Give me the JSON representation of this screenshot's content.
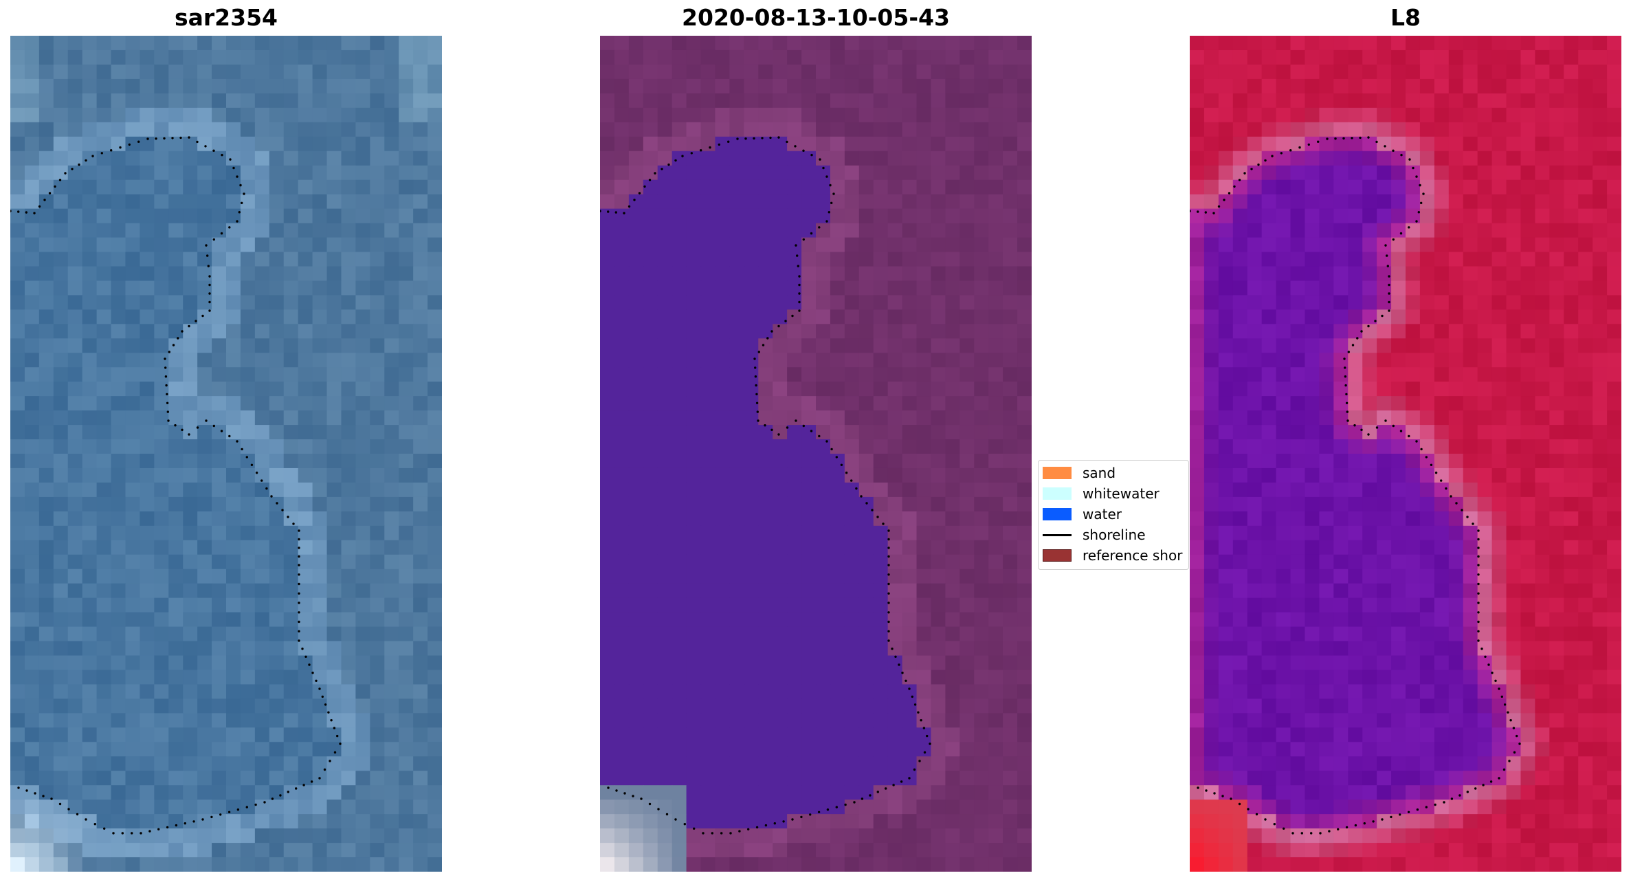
{
  "panels": [
    {
      "id": "rgb",
      "title": "sar2354"
    },
    {
      "id": "classified",
      "title": "2020-08-13-10-05-43"
    },
    {
      "id": "mndwi",
      "title": "L8"
    }
  ],
  "legend": {
    "items": [
      {
        "label": "sand",
        "color": "#FF8C42",
        "kind": "patch"
      },
      {
        "label": "whitewater",
        "color": "#CCFFFF",
        "kind": "patch"
      },
      {
        "label": "water",
        "color": "#0A5CFF",
        "kind": "patch"
      },
      {
        "label": "shoreline",
        "color": "#000000",
        "kind": "line"
      },
      {
        "label": "reference shor",
        "color": "#993333",
        "kind": "patch"
      }
    ]
  },
  "colors": {
    "water_class": "#54249B",
    "land_classified": "#70306A",
    "rgb_base": "#4E7AA0",
    "index_land": "#C9184A",
    "index_water": "#6C12A8",
    "shoreline_dots": "#000000"
  }
}
